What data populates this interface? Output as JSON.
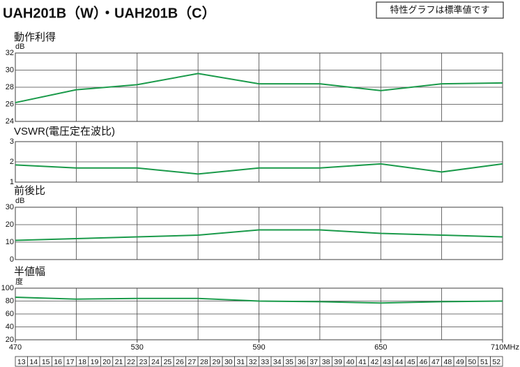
{
  "title": "UAH201B（W）・UAH201B（C）",
  "note": "特性グラフは標準値です",
  "chart_data": [
    {
      "type": "line",
      "title": "動作利得",
      "unit": "dB",
      "x": [
        470,
        500,
        530,
        560,
        590,
        620,
        650,
        680,
        710
      ],
      "values": [
        26.2,
        27.7,
        28.3,
        29.6,
        28.4,
        28.4,
        27.6,
        28.4,
        28.5
      ],
      "color": "#1a9a4a",
      "xlim": [
        470,
        710
      ],
      "ylim": [
        24,
        32
      ],
      "yticks": [
        24,
        26,
        28,
        30,
        32
      ],
      "grid": true
    },
    {
      "type": "line",
      "title": "VSWR(電圧定在波比)",
      "x": [
        470,
        500,
        530,
        560,
        590,
        620,
        650,
        680,
        710
      ],
      "values": [
        1.85,
        1.7,
        1.7,
        1.4,
        1.7,
        1.7,
        1.9,
        1.5,
        1.9
      ],
      "color": "#1a9a4a",
      "xlim": [
        470,
        710
      ],
      "ylim": [
        1,
        3
      ],
      "yticks": [
        1,
        2,
        3
      ],
      "grid": true
    },
    {
      "type": "line",
      "title": "前後比",
      "unit": "dB",
      "x": [
        470,
        500,
        530,
        560,
        590,
        620,
        650,
        680,
        710
      ],
      "values": [
        11,
        12,
        13,
        14,
        17,
        17,
        15,
        14,
        13
      ],
      "color": "#1a9a4a",
      "xlim": [
        470,
        710
      ],
      "ylim": [
        0,
        30
      ],
      "yticks": [
        0,
        10,
        20,
        30
      ],
      "grid": true
    },
    {
      "type": "line",
      "title": "半値幅",
      "unit": "度",
      "x": [
        470,
        500,
        530,
        560,
        590,
        620,
        650,
        680,
        710
      ],
      "values": [
        86,
        83,
        84,
        84,
        80,
        79,
        77,
        79,
        80
      ],
      "color": "#1a9a4a",
      "xlim": [
        470,
        710
      ],
      "ylim": [
        20,
        100
      ],
      "yticks": [
        20,
        40,
        60,
        80,
        100
      ],
      "grid": true,
      "xticks": [
        470,
        530,
        590,
        650,
        {
          "value": 710,
          "label": "710MHz"
        }
      ]
    }
  ],
  "channels": [
    13,
    14,
    15,
    16,
    17,
    18,
    19,
    20,
    21,
    22,
    23,
    24,
    25,
    26,
    27,
    28,
    29,
    30,
    31,
    32,
    33,
    34,
    35,
    36,
    37,
    38,
    39,
    40,
    41,
    42,
    43,
    44,
    45,
    46,
    47,
    48,
    49,
    50,
    51,
    52
  ]
}
